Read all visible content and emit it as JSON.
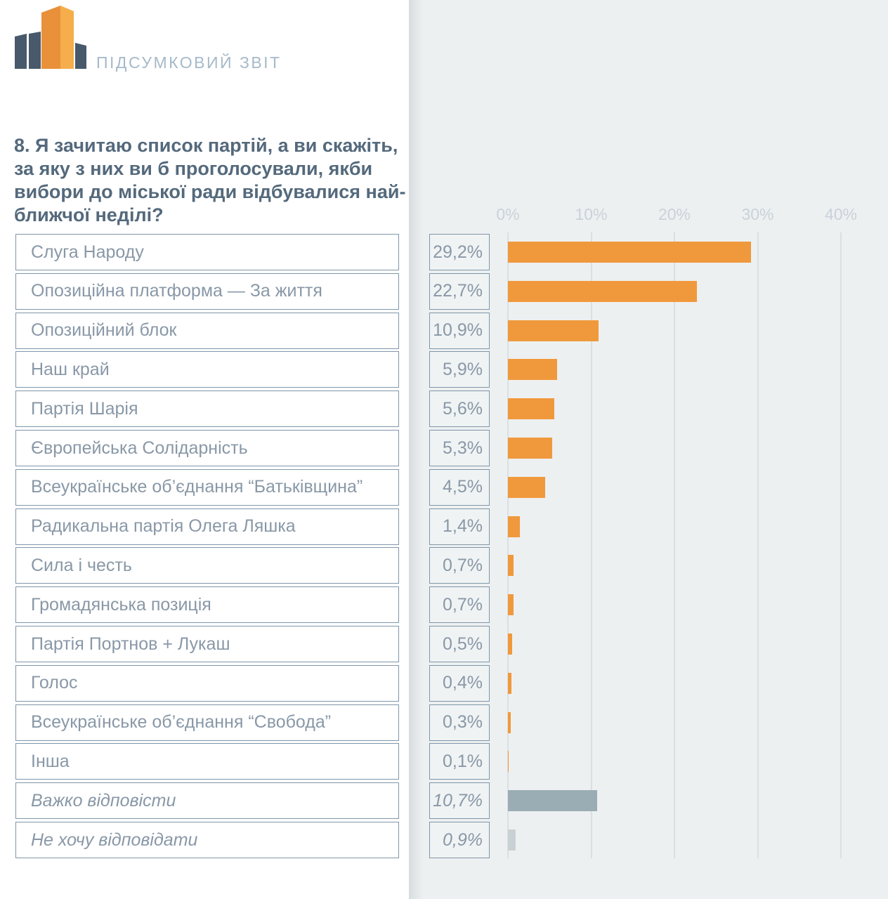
{
  "header": {
    "logo_caption": "ПІДСУМКОВИЙ ЗВІТ"
  },
  "question": {
    "text": "8. Я зачитаю список партій, а ви скажіть,\nза яку з них ви б проголосували, якби\nвибори до міської ради відбувалися най-\nближчої неділі?"
  },
  "chart_data": {
    "type": "bar",
    "orientation": "horizontal",
    "categories": [
      "Слуга Народу",
      "Опозиційна платформа — За життя",
      "Опозиційний блок",
      "Наш край",
      "Партія Шарія",
      "Європейська Солідарність",
      "Всеукраїнське об’єднання “Батьківщина”",
      "Радикальна партія Олега Ляшка",
      "Сила і честь",
      "Громадянська позиція",
      "Партія Портнов + Лукаш",
      "Голос",
      "Всеукраїнське об’єднання “Свобода”",
      "Інша",
      "Важко відповісти",
      "Не хочу відповідати"
    ],
    "values": [
      29.2,
      22.7,
      10.9,
      5.9,
      5.6,
      5.3,
      4.5,
      1.4,
      0.7,
      0.7,
      0.5,
      0.4,
      0.3,
      0.1,
      10.7,
      0.9
    ],
    "value_labels": [
      "29,2%",
      "22,7%",
      "10,9%",
      "5,9%",
      "5,6%",
      "5,3%",
      "4,5%",
      "1,4%",
      "0,7%",
      "0,7%",
      "0,5%",
      "0,4%",
      "0,3%",
      "0,1%",
      "10,7%",
      "0,9%"
    ],
    "bar_styles": [
      "orange",
      "orange",
      "orange",
      "orange",
      "orange",
      "orange",
      "orange",
      "orange",
      "orange",
      "orange",
      "orange",
      "orange",
      "orange",
      "orange",
      "gray",
      "lightgray"
    ],
    "italic_categories": [
      false,
      false,
      false,
      false,
      false,
      false,
      false,
      false,
      false,
      false,
      false,
      false,
      false,
      false,
      true,
      true
    ],
    "axis": {
      "xlim": [
        0,
        40
      ],
      "ticks": [
        0,
        10,
        20,
        30,
        40
      ],
      "tick_labels": [
        "0%",
        "10%",
        "20%",
        "30%",
        "40%"
      ],
      "grid": true,
      "unit": "%"
    },
    "colors": {
      "orange": "#f0993c",
      "gray": "#9aacb4",
      "lightgray": "#c9d1d5"
    }
  }
}
